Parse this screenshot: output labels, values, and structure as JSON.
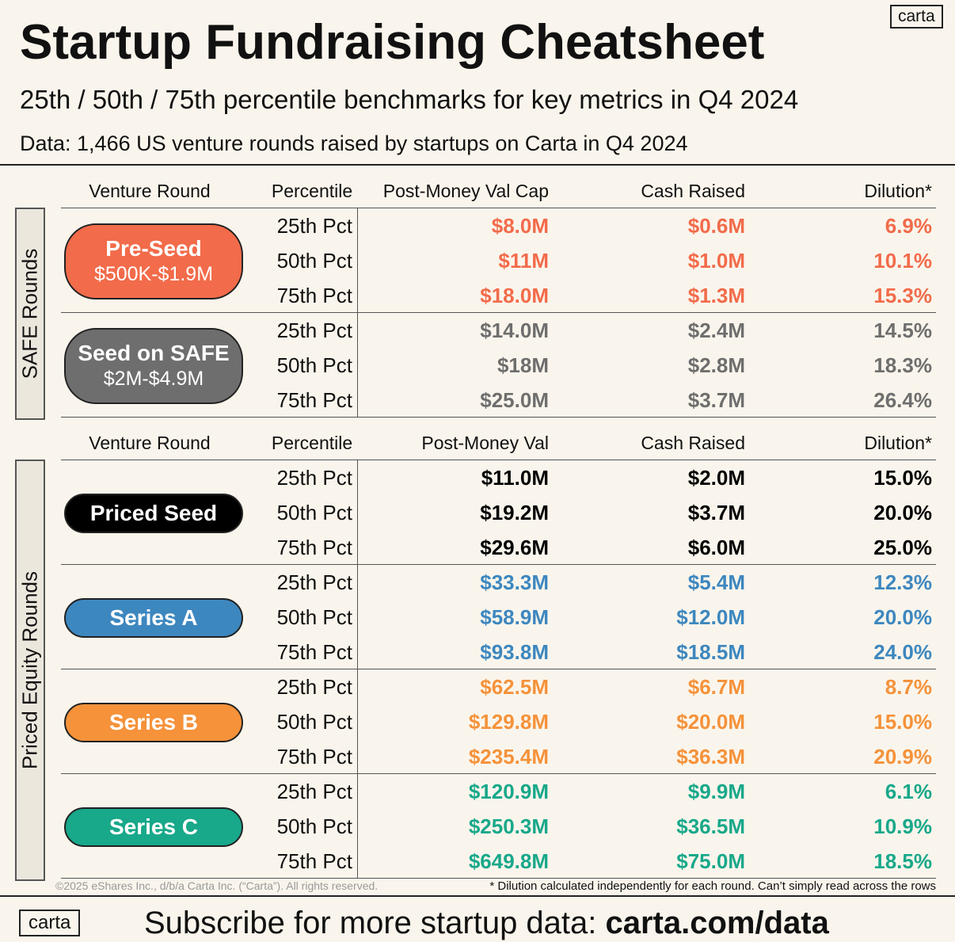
{
  "logo": "carta",
  "header": {
    "title": "Startup Fundraising Cheatsheet",
    "subtitle": "25th / 50th / 75th percentile benchmarks for key metrics in Q4 2024",
    "source": "Data: 1,466 US venture rounds raised by startups on Carta in Q4 2024"
  },
  "sections": [
    {
      "label": "SAFE Rounds",
      "columns": [
        "Venture Round",
        "Percentile",
        "Post-Money Val Cap",
        "Cash Raised",
        "Dilution*"
      ],
      "rounds": [
        {
          "name": "Pre-Seed",
          "range": "$500K-$1.9M",
          "color": "#f26b4a",
          "rows": [
            [
              "25th Pct",
              "$8.0M",
              "$0.6M",
              "6.9%"
            ],
            [
              "50th Pct",
              "$11M",
              "$1.0M",
              "10.1%"
            ],
            [
              "75th Pct",
              "$18.0M",
              "$1.3M",
              "15.3%"
            ]
          ]
        },
        {
          "name": "Seed on SAFE",
          "range": "$2M-$4.9M",
          "color": "#6e6e6e",
          "rows": [
            [
              "25th Pct",
              "$14.0M",
              "$2.4M",
              "14.5%"
            ],
            [
              "50th Pct",
              "$18M",
              "$2.8M",
              "18.3%"
            ],
            [
              "75th Pct",
              "$25.0M",
              "$3.7M",
              "26.4%"
            ]
          ]
        }
      ]
    },
    {
      "label": "Priced Equity Rounds",
      "columns": [
        "Venture Round",
        "Percentile",
        "Post-Money Val",
        "Cash Raised",
        "Dilution*"
      ],
      "rounds": [
        {
          "name": "Priced Seed",
          "color": "#000000",
          "rows": [
            [
              "25th Pct",
              "$11.0M",
              "$2.0M",
              "15.0%"
            ],
            [
              "50th Pct",
              "$19.2M",
              "$3.7M",
              "20.0%"
            ],
            [
              "75th Pct",
              "$29.6M",
              "$6.0M",
              "25.0%"
            ]
          ]
        },
        {
          "name": "Series A",
          "color": "#3d87bf",
          "rows": [
            [
              "25th Pct",
              "$33.3M",
              "$5.4M",
              "12.3%"
            ],
            [
              "50th Pct",
              "$58.9M",
              "$12.0M",
              "20.0%"
            ],
            [
              "75th Pct",
              "$93.8M",
              "$18.5M",
              "24.0%"
            ]
          ]
        },
        {
          "name": "Series B",
          "color": "#f5923a",
          "rows": [
            [
              "25th Pct",
              "$62.5M",
              "$6.7M",
              "8.7%"
            ],
            [
              "50th Pct",
              "$129.8M",
              "$20.0M",
              "15.0%"
            ],
            [
              "75th Pct",
              "$235.4M",
              "$36.3M",
              "20.9%"
            ]
          ]
        },
        {
          "name": "Series C",
          "color": "#18a88a",
          "rows": [
            [
              "25th Pct",
              "$120.9M",
              "$9.9M",
              "6.1%"
            ],
            [
              "50th Pct",
              "$250.3M",
              "$36.5M",
              "10.9%"
            ],
            [
              "75th Pct",
              "$649.8M",
              "$75.0M",
              "18.5%"
            ]
          ]
        }
      ]
    }
  ],
  "footer": {
    "copyright": "©2025 eShares Inc., d/b/a Carta Inc. (“Carta”). All rights reserved.",
    "note": "* Dilution calculated independently for each round. Can’t simply read across the rows",
    "logo": "carta",
    "cta": "Subscribe for more startup data: ",
    "link": "carta.com/data"
  }
}
